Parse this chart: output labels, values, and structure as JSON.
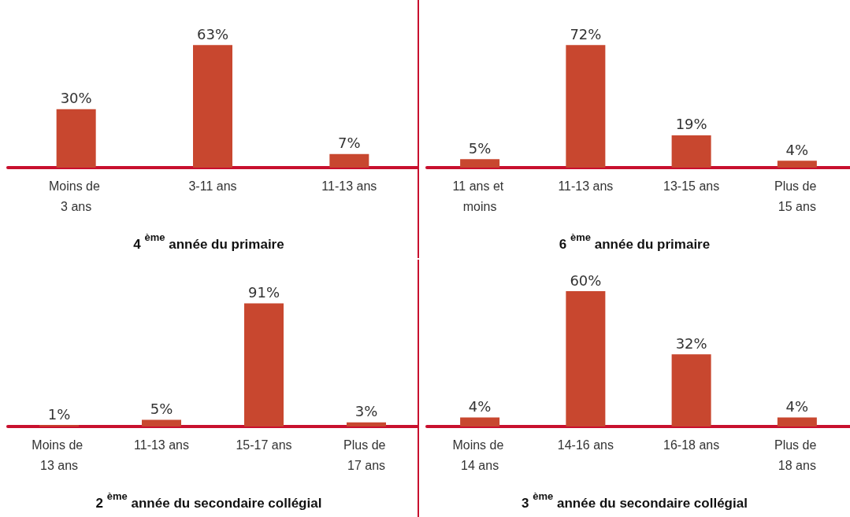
{
  "chart_data": [
    {
      "type": "bar",
      "title": "4 $^{ème}$ année du primaire",
      "categories": [
        "Moins de 3 ans",
        "3-11 ans",
        "11-13 ans"
      ],
      "values": [
        30,
        63,
        7
      ],
      "value_labels": [
        "30%",
        "63%",
        "7%"
      ],
      "color": "#c8472f"
    },
    {
      "type": "bar",
      "title": "6 $^{ème}$ année du primaire",
      "categories": [
        "11 ans et moins",
        "11-13 ans",
        "13-15 ans",
        "Plus de 15 ans"
      ],
      "values": [
        5,
        72,
        19,
        4
      ],
      "value_labels": [
        "5%",
        "72%",
        "19%",
        "4%"
      ],
      "color": "#c8472f"
    },
    {
      "type": "bar",
      "title": "2 $^{ème}$ année du secondaire collégial",
      "categories": [
        "Moins de 13 ans",
        "11-13 ans",
        "15-17 ans",
        "Plus de 17 ans"
      ],
      "values": [
        1,
        5,
        91,
        3
      ],
      "value_labels": [
        "1%",
        "5%",
        "91%",
        "3%"
      ],
      "color": "#c8472f"
    },
    {
      "type": "bar",
      "title": "3 $^{ème}$ année du secondaire collégial",
      "categories": [
        "Moins de 14 ans",
        "14-16 ans",
        "16-18 ans",
        "Plus de 18 ans"
      ],
      "values": [
        4,
        60,
        32,
        4
      ],
      "value_labels": [
        "4%",
        "60%",
        "32%",
        "4%"
      ],
      "color": "#c8472f"
    }
  ]
}
